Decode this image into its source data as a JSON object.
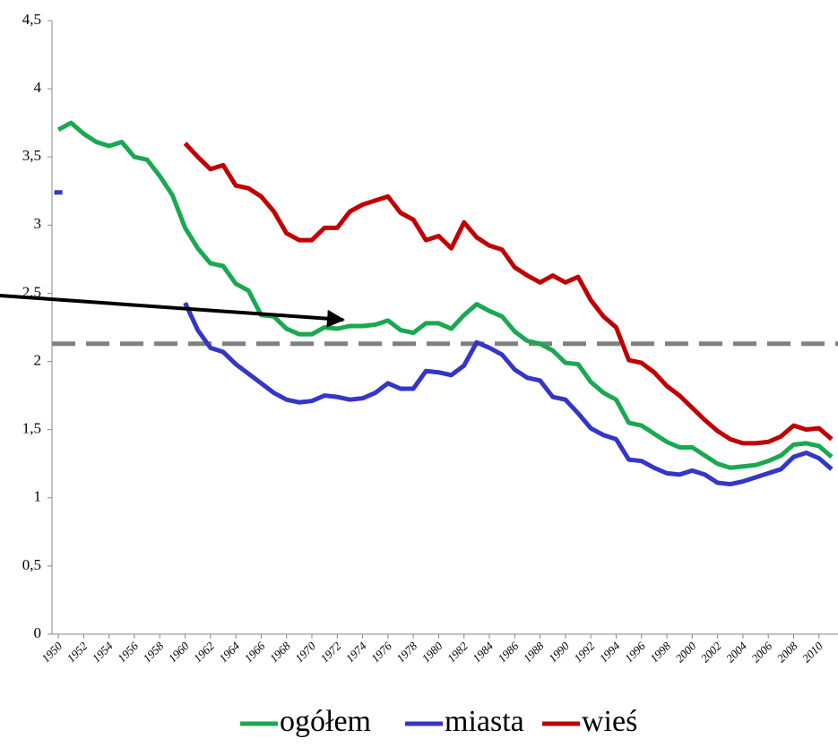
{
  "chart_data": {
    "type": "line",
    "x": [
      1950,
      1951,
      1952,
      1953,
      1954,
      1955,
      1956,
      1957,
      1958,
      1959,
      1960,
      1961,
      1962,
      1963,
      1964,
      1965,
      1966,
      1967,
      1968,
      1969,
      1970,
      1971,
      1972,
      1973,
      1974,
      1975,
      1976,
      1977,
      1978,
      1979,
      1980,
      1981,
      1982,
      1983,
      1984,
      1985,
      1986,
      1987,
      1988,
      1989,
      1990,
      1991,
      1992,
      1993,
      1994,
      1995,
      1996,
      1997,
      1998,
      1999,
      2000,
      2001,
      2002,
      2003,
      2004,
      2005,
      2006,
      2007,
      2008,
      2009,
      2010,
      2011
    ],
    "series": [
      {
        "name": "ogółem",
        "color": "#1aa851",
        "values": [
          3.7,
          3.75,
          3.67,
          3.61,
          3.58,
          3.61,
          3.5,
          3.48,
          3.36,
          3.22,
          2.98,
          2.83,
          2.72,
          2.7,
          2.57,
          2.52,
          2.34,
          2.33,
          2.24,
          2.2,
          2.2,
          2.25,
          2.24,
          2.26,
          2.26,
          2.27,
          2.3,
          2.23,
          2.21,
          2.28,
          2.28,
          2.24,
          2.34,
          2.42,
          2.37,
          2.33,
          2.22,
          2.15,
          2.13,
          2.08,
          1.99,
          1.98,
          1.85,
          1.77,
          1.72,
          1.55,
          1.53,
          1.47,
          1.41,
          1.37,
          1.37,
          1.31,
          1.25,
          1.22,
          1.23,
          1.24,
          1.27,
          1.31,
          1.39,
          1.4,
          1.38,
          1.3
        ]
      },
      {
        "name": "miasta",
        "color": "#3535c8",
        "values": [
          3.24,
          null,
          null,
          null,
          null,
          null,
          null,
          null,
          null,
          null,
          2.43,
          2.23,
          2.1,
          2.07,
          1.98,
          1.91,
          1.84,
          1.77,
          1.72,
          1.7,
          1.71,
          1.75,
          1.74,
          1.72,
          1.73,
          1.77,
          1.84,
          1.8,
          1.8,
          1.93,
          1.92,
          1.9,
          1.97,
          2.14,
          2.1,
          2.05,
          1.94,
          1.88,
          1.86,
          1.74,
          1.72,
          1.62,
          1.51,
          1.46,
          1.43,
          1.28,
          1.27,
          1.22,
          1.18,
          1.17,
          1.2,
          1.17,
          1.11,
          1.1,
          1.12,
          1.15,
          1.18,
          1.21,
          1.3,
          1.33,
          1.29,
          1.21
        ]
      },
      {
        "name": "wieś",
        "color": "#c00000",
        "values": [
          null,
          null,
          null,
          null,
          null,
          null,
          null,
          null,
          null,
          null,
          3.6,
          3.5,
          3.41,
          3.44,
          3.29,
          3.27,
          3.21,
          3.1,
          2.94,
          2.89,
          2.89,
          2.98,
          2.98,
          3.1,
          3.15,
          3.18,
          3.21,
          3.09,
          3.04,
          2.89,
          2.92,
          2.83,
          3.02,
          2.91,
          2.85,
          2.82,
          2.69,
          2.63,
          2.58,
          2.63,
          2.58,
          2.62,
          2.45,
          2.33,
          2.25,
          2.01,
          1.99,
          1.92,
          1.82,
          1.75,
          1.66,
          1.57,
          1.49,
          1.43,
          1.4,
          1.4,
          1.41,
          1.45,
          1.53,
          1.5,
          1.51,
          1.43
        ]
      }
    ],
    "xlim": [
      1949.5,
      2011.5
    ],
    "xticks": [
      1950,
      1952,
      1954,
      1956,
      1958,
      1960,
      1962,
      1964,
      1966,
      1968,
      1970,
      1972,
      1974,
      1976,
      1978,
      1980,
      1982,
      1984,
      1986,
      1988,
      1990,
      1992,
      1994,
      1996,
      1998,
      2000,
      2002,
      2004,
      2006,
      2008,
      2010
    ],
    "ylim": [
      0,
      4.5
    ],
    "yticks": [
      0,
      {
        "value": 0.5,
        "label": "0,5"
      },
      1,
      {
        "value": 1.5,
        "label": "1,5"
      },
      2,
      {
        "value": 2.5,
        "label": "2,5"
      },
      3,
      {
        "value": 3.5,
        "label": "3,5"
      },
      4,
      {
        "value": 4.5,
        "label": "4,5"
      }
    ],
    "reference_line": {
      "value": 2.13,
      "color": "#808080"
    },
    "legend": "bottom",
    "grid": false
  }
}
